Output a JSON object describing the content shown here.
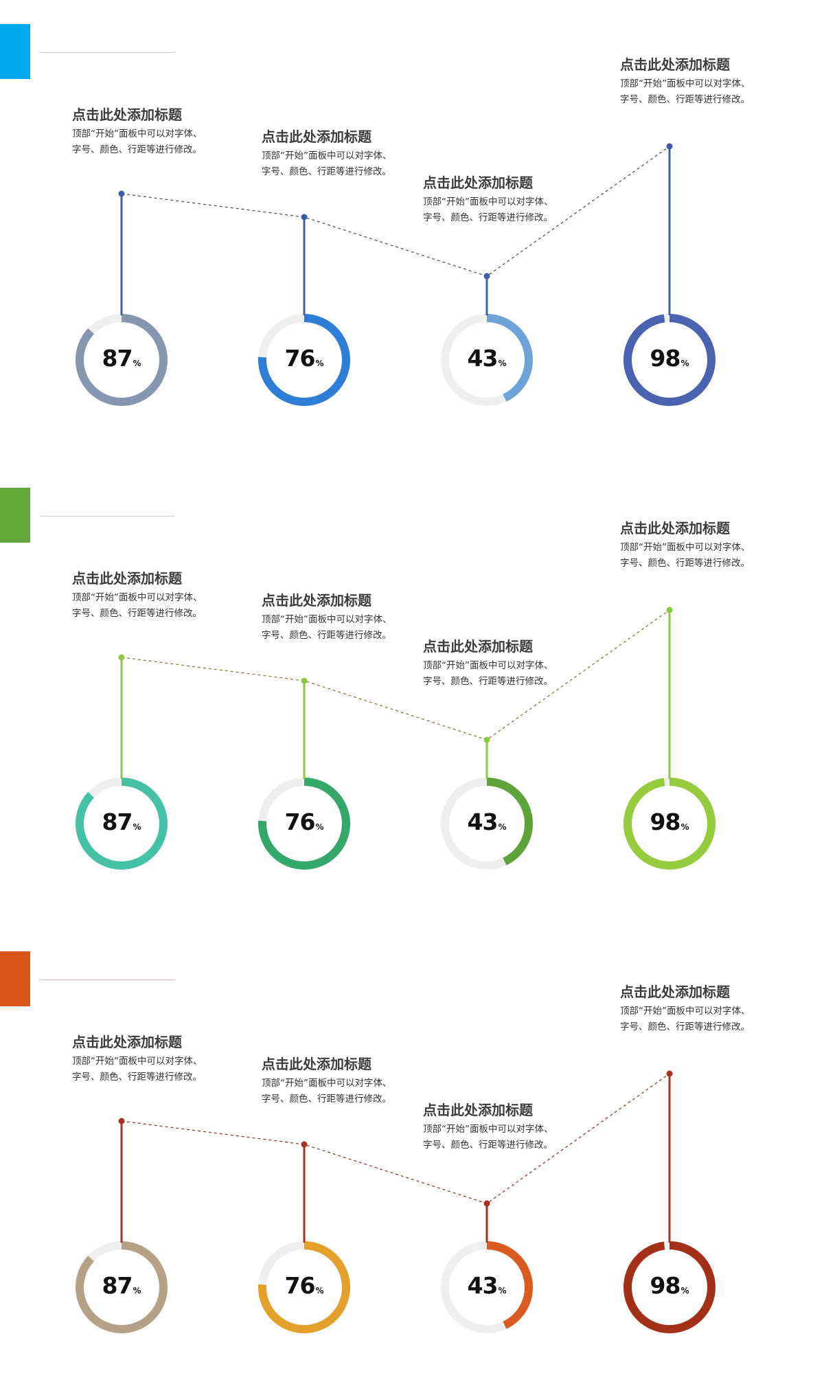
{
  "shared_text": {
    "title": "点击此处添加标题",
    "body": "顶部“开始”面板中可以对字体、字号、颜色、行距等进行修改。"
  },
  "percent_sign": "%",
  "panels": [
    {
      "accent_color": "#00A9F0",
      "rule_color": "#D0D0D0",
      "connector_color": "#3F5DA4",
      "dotted_color": "#555555",
      "items": [
        {
          "title": "点击此处添加标题",
          "body": "顶部“开始”面板中可以对字体、字号、颜色、行距等进行修改。",
          "value": "87",
          "percent": 87,
          "ring_color": "#8496B0"
        },
        {
          "title": "点击此处添加标题",
          "body": "顶部“开始”面板中可以对字体、字号、颜色、行距等进行修改。",
          "value": "76",
          "percent": 76,
          "ring_color": "#2E7DD6"
        },
        {
          "title": "点击此处添加标题",
          "body": "顶部“开始”面板中可以对字体、字号、颜色、行距等进行修改。",
          "value": "43",
          "percent": 43,
          "ring_color": "#6FA3D8"
        },
        {
          "title": "点击此处添加标题",
          "body": "顶部“开始”面板中可以对字体、字号、颜色、行距等进行修改。",
          "value": "98",
          "percent": 98,
          "ring_color": "#4A63B0"
        }
      ]
    },
    {
      "accent_color": "#63A83A",
      "rule_color": "#D0D0D0",
      "connector_color": "#8DC63F",
      "dotted_color": "#8A7A40",
      "items": [
        {
          "title": "点击此处添加标题",
          "body": "顶部“开始”面板中可以对字体、字号、颜色、行距等进行修改。",
          "value": "87",
          "percent": 87,
          "ring_color": "#45C2A5"
        },
        {
          "title": "点击此处添加标题",
          "body": "顶部“开始”面板中可以对字体、字号、颜色、行距等进行修改。",
          "value": "76",
          "percent": 76,
          "ring_color": "#34A86B"
        },
        {
          "title": "点击此处添加标题",
          "body": "顶部“开始”面板中可以对字体、字号、颜色、行距等进行修改。",
          "value": "43",
          "percent": 43,
          "ring_color": "#5EA33A"
        },
        {
          "title": "点击此处添加标题",
          "body": "顶部“开始”面板中可以对字体、字号、颜色、行距等进行修改。",
          "value": "98",
          "percent": 98,
          "ring_color": "#97CB3E"
        }
      ]
    },
    {
      "accent_color": "#D9541B",
      "rule_color": "#E3B3B3",
      "connector_color": "#A8321B",
      "dotted_color": "#8A4030",
      "items": [
        {
          "title": "点击此处添加标题",
          "body": "顶部“开始”面板中可以对字体、字号、颜色、行距等进行修改。",
          "value": "87",
          "percent": 87,
          "ring_color": "#B5A286"
        },
        {
          "title": "点击此处添加标题",
          "body": "顶部“开始”面板中可以对字体、字号、颜色、行距等进行修改。",
          "value": "76",
          "percent": 76,
          "ring_color": "#E3A02B"
        },
        {
          "title": "点击此处添加标题",
          "body": "顶部“开始”面板中可以对字体、字号、颜色、行距等进行修改。",
          "value": "43",
          "percent": 43,
          "ring_color": "#DB5A20"
        },
        {
          "title": "点击此处添加标题",
          "body": "顶部“开始”面板中可以对字体、字号、颜色、行距等进行修改。",
          "value": "98",
          "percent": 98,
          "ring_color": "#A43018"
        }
      ]
    }
  ]
}
